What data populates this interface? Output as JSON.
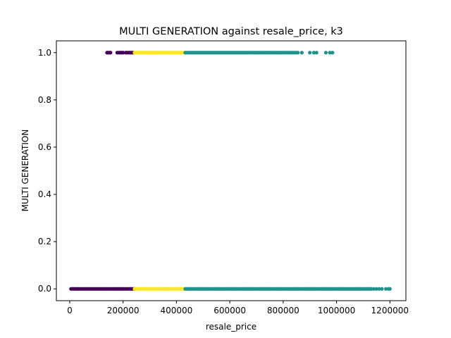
{
  "chart_data": {
    "type": "scatter",
    "title": "MULTI GENERATION against resale_price, k3",
    "xlabel": "resale_price",
    "ylabel": "MULTI GENERATION",
    "xlim": [
      -50000,
      1260000
    ],
    "ylim": [
      -0.05,
      1.05
    ],
    "x_ticks": [
      0,
      200000,
      400000,
      600000,
      800000,
      1000000,
      1200000
    ],
    "y_ticks": [
      0.0,
      0.2,
      0.4,
      0.6,
      0.8,
      1.0
    ],
    "x_tick_labels": [
      "0",
      "200000",
      "400000",
      "600000",
      "800000",
      "1000000",
      "1200000"
    ],
    "y_tick_labels": [
      "0.0",
      "0.2",
      "0.4",
      "0.6",
      "0.8",
      "1.0"
    ],
    "grid": false,
    "legend": "none",
    "series": [
      {
        "color": "#440154",
        "ranges_y0": [
          [
            5000,
            243000
          ]
        ],
        "points_y1": [
          140000,
          145000,
          150000,
          153000,
          178000,
          185000,
          190000,
          195000,
          200000,
          210000,
          215000,
          220000,
          225000,
          230000,
          235000,
          240000
        ]
      },
      {
        "color": "#fde725",
        "ranges_y0": [
          [
            243000,
            433000
          ]
        ],
        "points_y1_range": [
          [
            243000,
            433000
          ]
        ]
      },
      {
        "color": "#21918c",
        "ranges_y0": [
          [
            433000,
            1130000
          ]
        ],
        "points_y0": [
          1140000,
          1150000,
          1160000,
          1170000,
          1185000,
          1195000,
          1200000
        ],
        "points_y1_range": [
          [
            433000,
            855000
          ]
        ],
        "points_y1": [
          870000,
          900000,
          915000,
          925000,
          960000,
          975000,
          985000
        ]
      }
    ]
  }
}
